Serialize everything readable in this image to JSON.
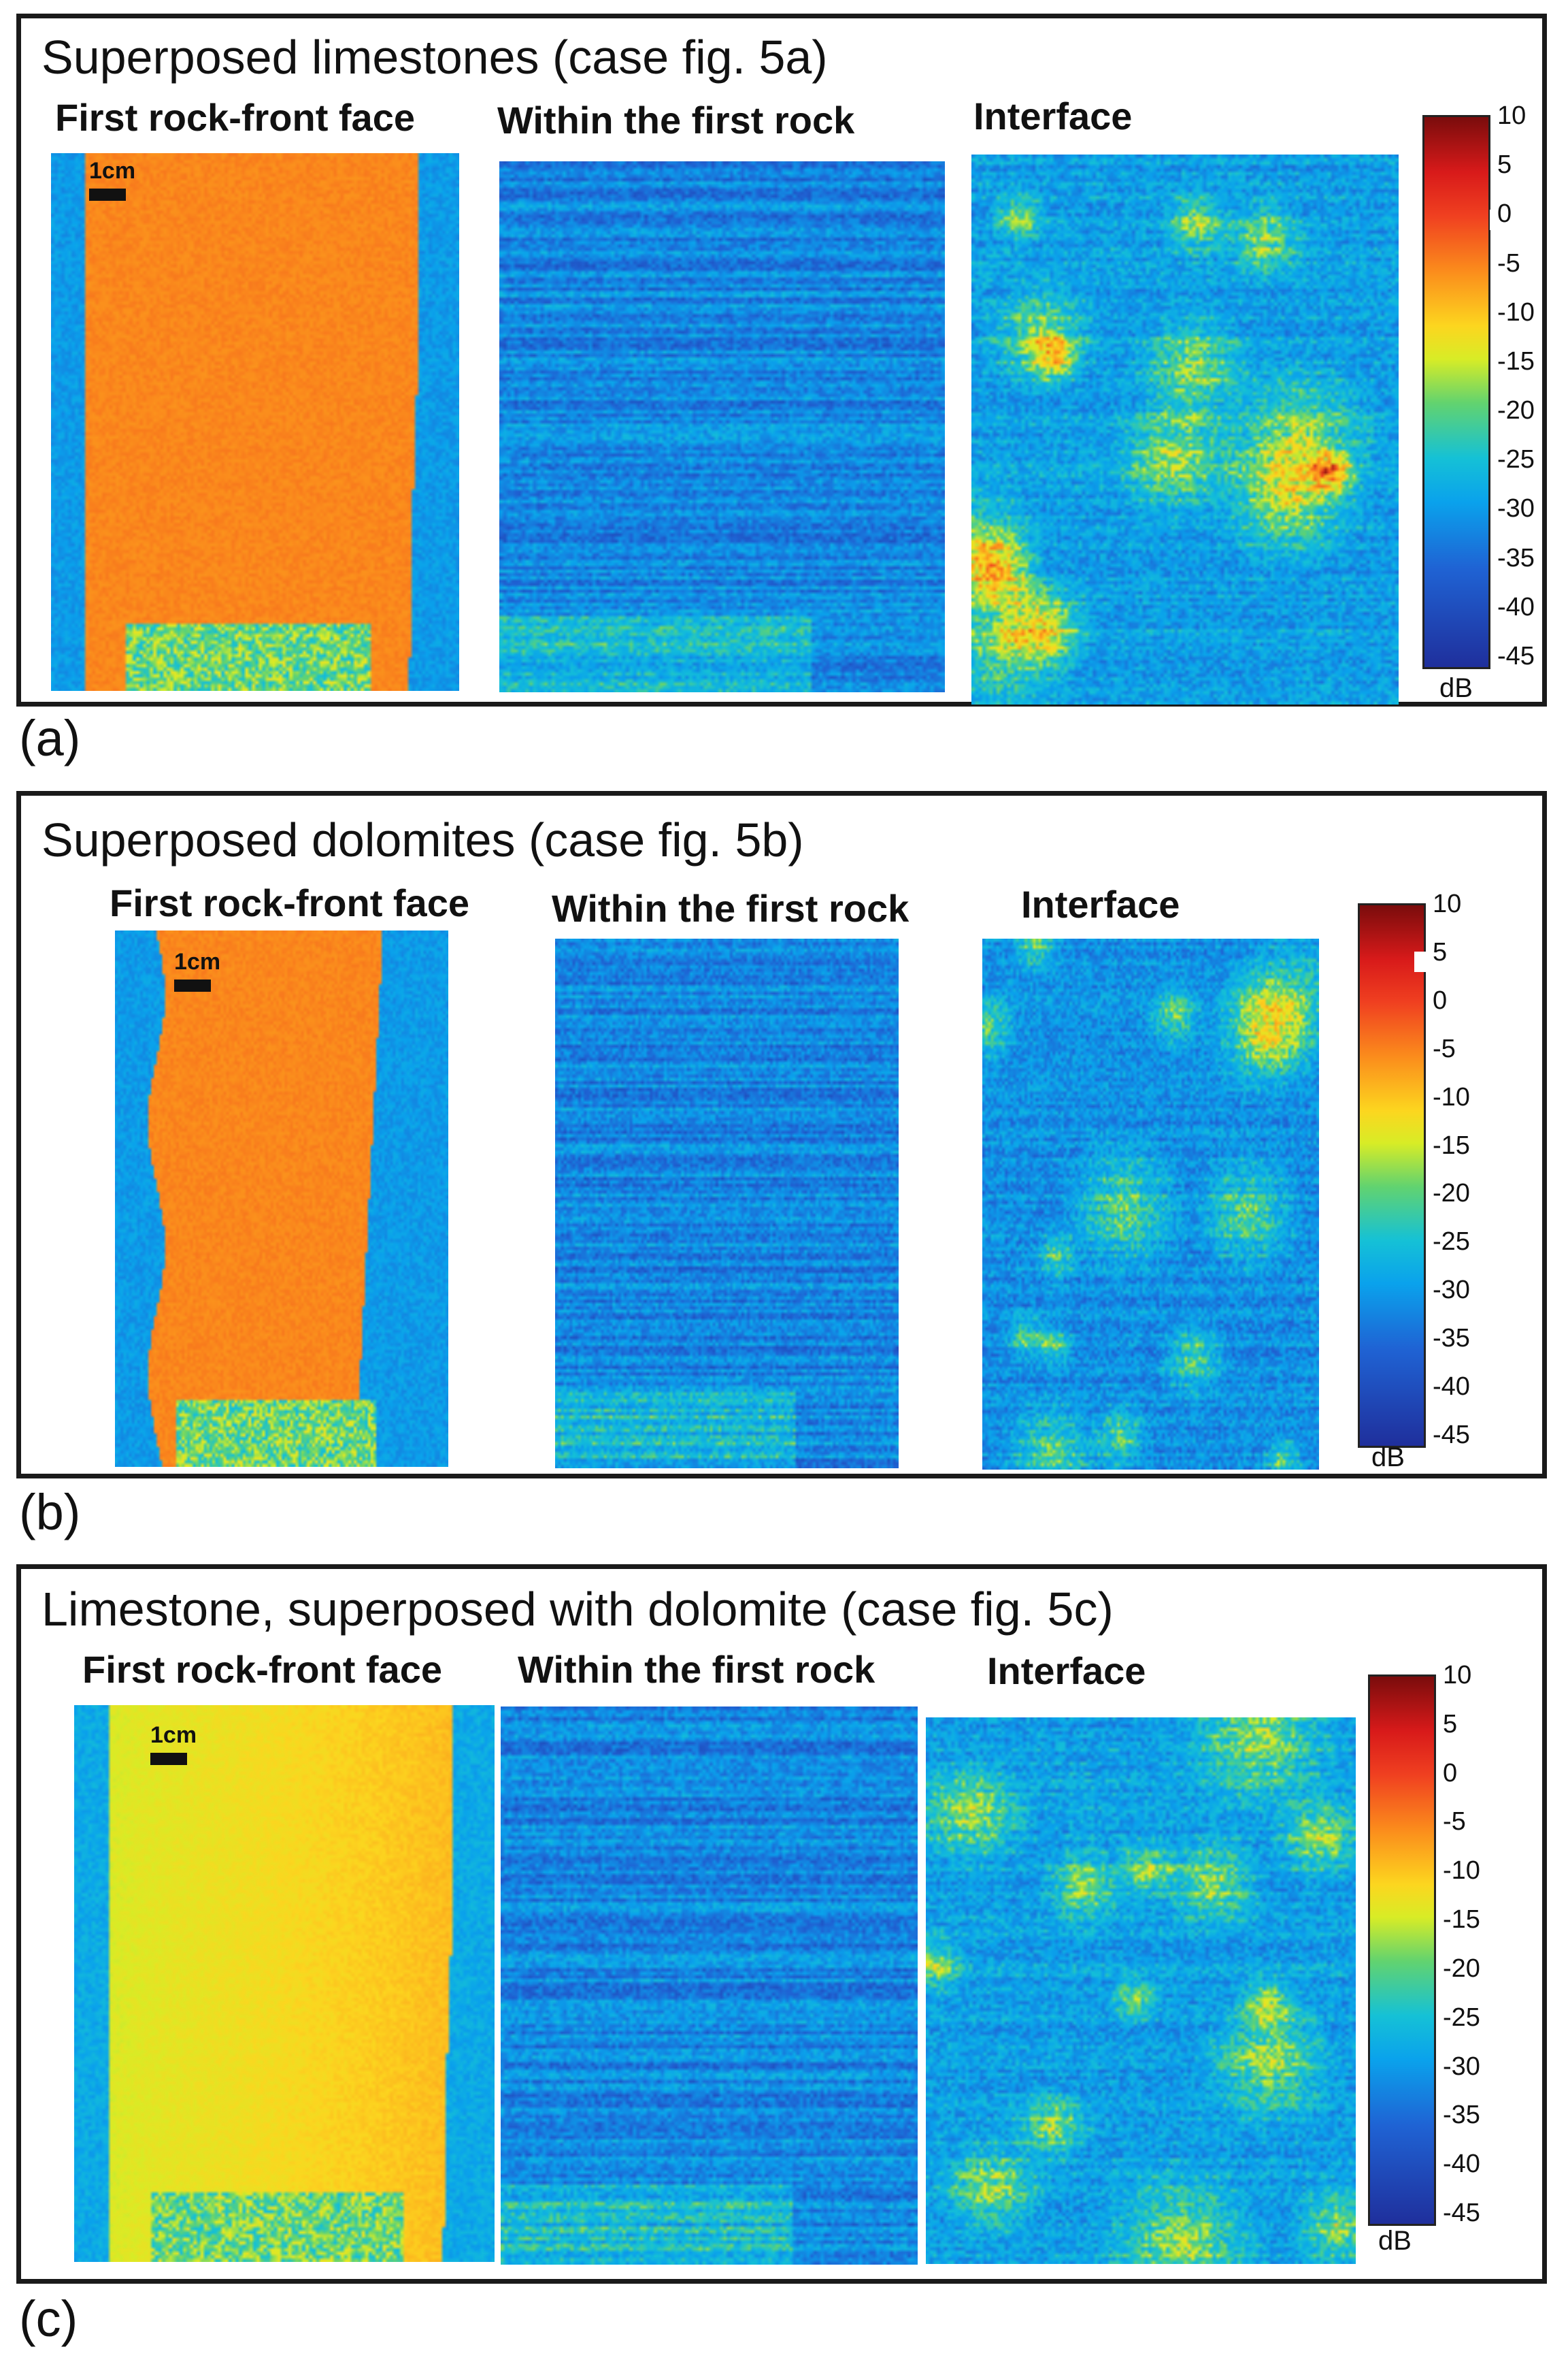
{
  "panels": [
    {
      "letter": "(a)",
      "title": "Superposed limestones (case fig. 5a)",
      "subtitles": [
        "First rock-front  face",
        "Within the first rock",
        "Interface"
      ],
      "scale_label": "1cm"
    },
    {
      "letter": "(b)",
      "title": "Superposed dolomites (case fig. 5b)",
      "subtitles": [
        "First rock-front  face",
        "Within the first rock",
        "Interface"
      ],
      "scale_label": "1cm"
    },
    {
      "letter": "(c)",
      "title": "Limestone, superposed with dolomite (case fig. 5c)",
      "subtitles": [
        "First rock-front  face",
        "Within the first rock",
        "Interface"
      ],
      "scale_label": "1cm"
    }
  ],
  "colorbar": {
    "ticks": [
      "10",
      "5",
      "0",
      "-5",
      "-10",
      "-15",
      "-20",
      "-25",
      "-30",
      "-35",
      "-40",
      "-45"
    ],
    "unit": "dB",
    "min_db": -45,
    "max_db": 10
  },
  "colors": {
    "frame": "#1a1a1a",
    "low": "#1f2f9c",
    "mid": "#15c1d6",
    "high": "#f39a1e",
    "peak": "#7a0c0c"
  }
}
